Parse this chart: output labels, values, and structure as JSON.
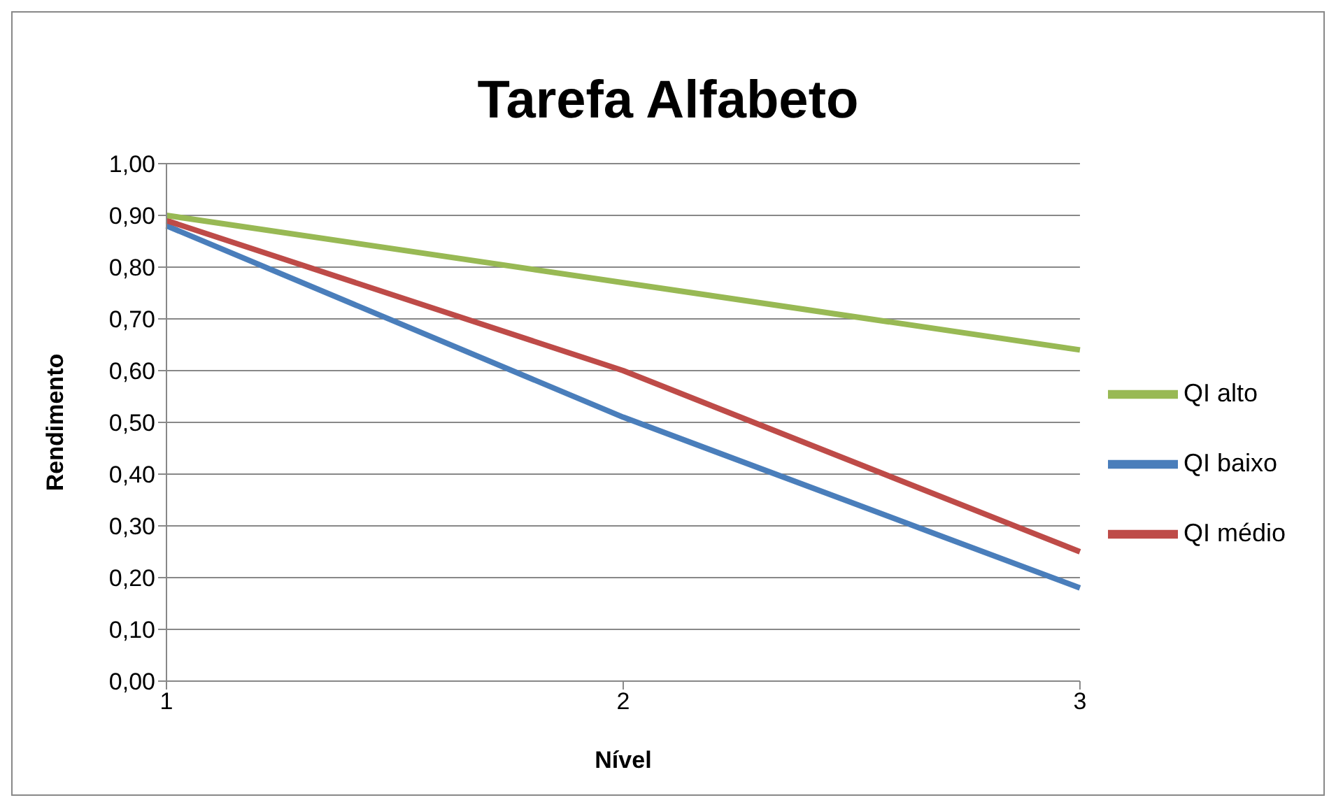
{
  "chart_data": {
    "type": "line",
    "title": "Tarefa Alfabeto",
    "xlabel": "Nível",
    "ylabel": "Rendimento",
    "categories": [
      "1",
      "2",
      "3"
    ],
    "series": [
      {
        "name": "QI baixo",
        "color": "#4a7ebb",
        "values": [
          0.88,
          0.51,
          0.18
        ]
      },
      {
        "name": "QI médio",
        "color": "#be4b48",
        "values": [
          0.89,
          0.6,
          0.25
        ]
      },
      {
        "name": "QI alto",
        "color": "#98b954",
        "values": [
          0.9,
          0.77,
          0.64
        ]
      }
    ],
    "ylim": [
      0,
      1
    ],
    "yticks": [
      {
        "value": 0,
        "label": "0,00"
      },
      {
        "value": 0.1,
        "label": "0,10"
      },
      {
        "value": 0.2,
        "label": "0,20"
      },
      {
        "value": 0.3,
        "label": "0,30"
      },
      {
        "value": 0.4,
        "label": "0,40"
      },
      {
        "value": 0.5,
        "label": "0,50"
      },
      {
        "value": 0.6,
        "label": "0,60"
      },
      {
        "value": 0.7,
        "label": "0,70"
      },
      {
        "value": 0.8,
        "label": "0,80"
      },
      {
        "value": 0.9,
        "label": "0,90"
      },
      {
        "value": 1,
        "label": "1,00"
      }
    ],
    "grid": "y",
    "legend": "right",
    "marker": "none",
    "line_style": "solid"
  }
}
